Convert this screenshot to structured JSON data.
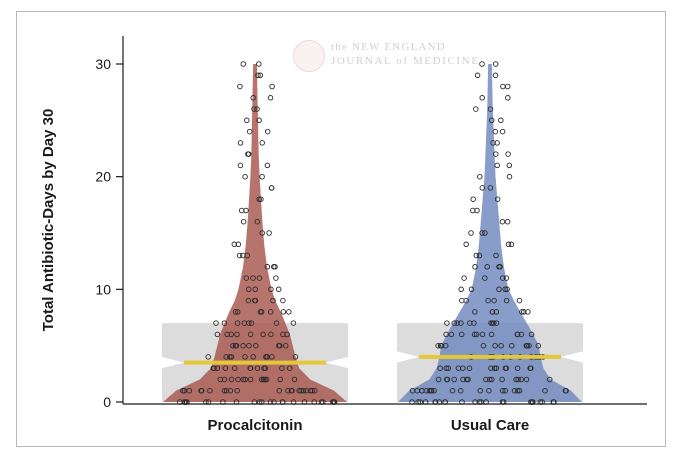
{
  "watermark": {
    "line1": "the NEW ENGLAND",
    "line2": "JOURNAL of MEDICINE"
  },
  "chart_data": {
    "type": "violin",
    "ylabel": "Total Antibiotic-Days by Day 30",
    "ylim": [
      0,
      31
    ],
    "yticks": [
      0,
      10,
      20,
      30
    ],
    "grid": false,
    "categories": [
      "Procalcitonin",
      "Usual Care"
    ],
    "colors": {
      "procalcitonin_violin": "#a7564d",
      "usual_care_violin": "#6e87bd",
      "iqr_box": "#dcdcdc",
      "median_line": "#e2c83a",
      "points": "#2b2b2b"
    },
    "series": [
      {
        "name": "Procalcitonin",
        "median": 3.5,
        "iqr": [
          0,
          7
        ],
        "notch": [
          3.0,
          4.0
        ],
        "max": 30,
        "density_y": [
          0,
          1,
          2,
          3,
          4,
          5,
          6,
          7,
          8,
          9,
          10,
          12,
          14,
          16,
          18,
          20,
          22,
          24,
          26,
          28,
          30
        ],
        "density_w": [
          1.0,
          0.86,
          0.6,
          0.48,
          0.44,
          0.41,
          0.38,
          0.33,
          0.28,
          0.22,
          0.18,
          0.13,
          0.1,
          0.08,
          0.065,
          0.05,
          0.04,
          0.035,
          0.03,
          0.025,
          0.02
        ]
      },
      {
        "name": "Usual Care",
        "median": 4.0,
        "iqr": [
          0,
          7
        ],
        "notch": [
          3.5,
          4.5
        ],
        "max": 30,
        "density_y": [
          0,
          1,
          2,
          3,
          4,
          5,
          6,
          7,
          8,
          9,
          10,
          12,
          14,
          16,
          18,
          20,
          22,
          24,
          26,
          28,
          30
        ],
        "density_w": [
          1.0,
          0.88,
          0.66,
          0.58,
          0.55,
          0.53,
          0.47,
          0.4,
          0.33,
          0.26,
          0.2,
          0.15,
          0.12,
          0.1,
          0.08,
          0.06,
          0.05,
          0.04,
          0.03,
          0.025,
          0.02
        ]
      }
    ]
  }
}
